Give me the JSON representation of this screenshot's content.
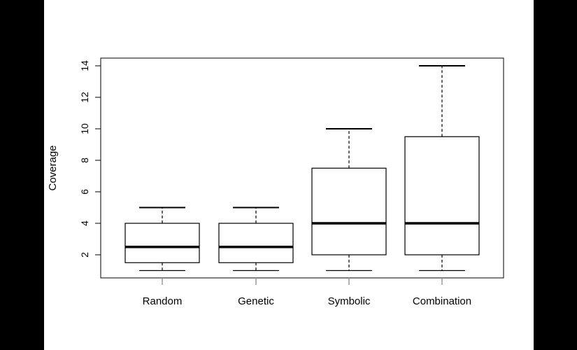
{
  "chart_data": {
    "type": "boxplot",
    "ylabel": "Coverage",
    "xlabel": "",
    "title": "",
    "categories": [
      "Random",
      "Genetic",
      "Symbolic",
      "Combination"
    ],
    "boxes": [
      {
        "name": "Random",
        "min": 1,
        "q1": 1.5,
        "median": 2.5,
        "q3": 4,
        "max": 5
      },
      {
        "name": "Genetic",
        "min": 1,
        "q1": 1.5,
        "median": 2.5,
        "q3": 4,
        "max": 5
      },
      {
        "name": "Symbolic",
        "min": 1,
        "q1": 2,
        "median": 4,
        "q3": 7.5,
        "max": 10
      },
      {
        "name": "Combination",
        "min": 1,
        "q1": 2,
        "median": 4,
        "q3": 9.5,
        "max": 14
      }
    ],
    "yticks": [
      2,
      4,
      6,
      8,
      10,
      12,
      14
    ],
    "ylim": [
      0.5,
      14.5
    ],
    "grid": false,
    "legend": "none"
  }
}
